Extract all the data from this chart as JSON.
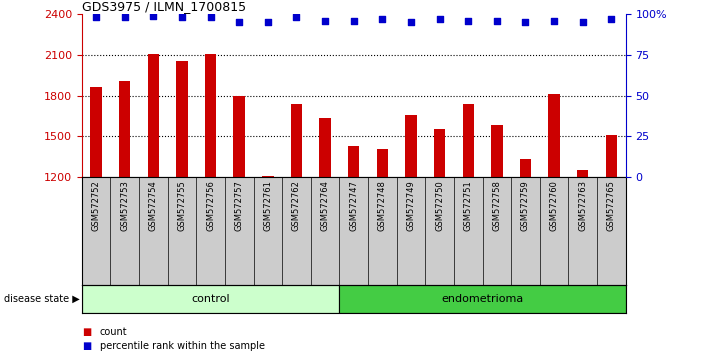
{
  "title": "GDS3975 / ILMN_1700815",
  "samples": [
    "GSM572752",
    "GSM572753",
    "GSM572754",
    "GSM572755",
    "GSM572756",
    "GSM572757",
    "GSM572761",
    "GSM572762",
    "GSM572764",
    "GSM572747",
    "GSM572748",
    "GSM572749",
    "GSM572750",
    "GSM572751",
    "GSM572758",
    "GSM572759",
    "GSM572760",
    "GSM572763",
    "GSM572765"
  ],
  "counts": [
    1860,
    1910,
    2105,
    2055,
    2105,
    1800,
    1205,
    1735,
    1635,
    1430,
    1410,
    1660,
    1555,
    1735,
    1580,
    1330,
    1810,
    1250,
    1510
  ],
  "percentile_ranks": [
    98,
    98,
    99,
    98,
    98,
    95,
    95,
    98,
    96,
    96,
    97,
    95,
    97,
    96,
    96,
    95,
    96,
    95,
    97
  ],
  "groups": [
    "control",
    "control",
    "control",
    "control",
    "control",
    "control",
    "control",
    "control",
    "control",
    "endometrioma",
    "endometrioma",
    "endometrioma",
    "endometrioma",
    "endometrioma",
    "endometrioma",
    "endometrioma",
    "endometrioma",
    "endometrioma",
    "endometrioma"
  ],
  "control_count": 9,
  "endometrioma_count": 10,
  "ylim_left": [
    1200,
    2400
  ],
  "ylim_right": [
    0,
    100
  ],
  "yticks_left": [
    1200,
    1500,
    1800,
    2100,
    2400
  ],
  "yticks_right": [
    0,
    25,
    50,
    75,
    100
  ],
  "bar_color": "#cc0000",
  "dot_color": "#0000cc",
  "control_bg": "#ccffcc",
  "endometrioma_bg": "#44cc44",
  "sample_bg": "#cccccc",
  "legend_count_label": "count",
  "legend_pct_label": "percentile rank within the sample",
  "disease_state_label": "disease state",
  "bar_width": 0.4
}
